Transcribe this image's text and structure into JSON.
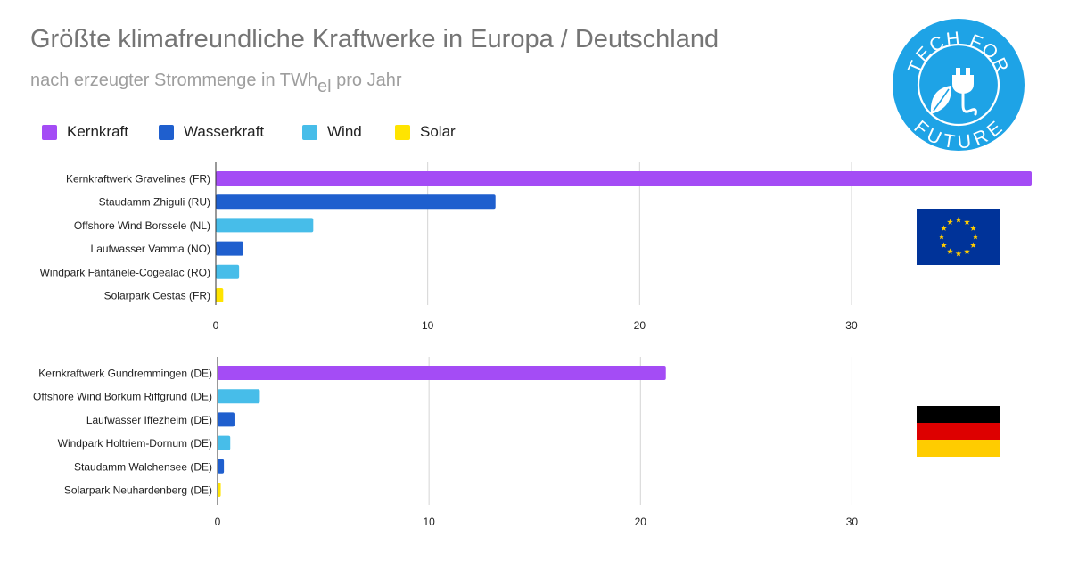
{
  "title": "Größte klimafreundliche Kraftwerke in Europa / Deutschland",
  "subtitle_main": "nach erzeugter Strommenge in TWh",
  "subtitle_sub": "el",
  "subtitle_tail": " pro Jahr",
  "legend": [
    {
      "label": "Kernkraft",
      "color": "#a44cf5"
    },
    {
      "label": "Wasserkraft",
      "color": "#1f5fce"
    },
    {
      "label": "Wind",
      "color": "#47bde9"
    },
    {
      "label": "Solar",
      "color": "#ffe400"
    }
  ],
  "logo": {
    "text_top": "TECH FOR",
    "text_bottom": "FUTURE",
    "color": "#1ea3e6",
    "icon": "plug-leaf-icon"
  },
  "flags": {
    "eu": {
      "icon": "eu-flag-icon",
      "color": "#003399",
      "star_color": "#ffcc00"
    },
    "de": {
      "icon": "germany-flag-icon",
      "colors": [
        "#000000",
        "#dd0000",
        "#ffcc00"
      ]
    }
  },
  "chart_data": [
    {
      "type": "bar",
      "orientation": "horizontal",
      "categories": [
        "Kernkraftwerk Gravelines (FR)",
        "Staudamm Zhiguli (RU)",
        "Offshore Wind Borssele (NL)",
        "Laufwasser Vamma (NO)",
        "Windpark Fântânele-Cogealac (RO)",
        "Solarpark Cestas (FR)"
      ],
      "values": [
        38.5,
        13.2,
        4.6,
        1.3,
        1.1,
        0.35
      ],
      "kinds": [
        "Kernkraft",
        "Wasserkraft",
        "Wind",
        "Wasserkraft",
        "Wind",
        "Solar"
      ],
      "xlim": [
        0,
        38.5
      ],
      "xticks": [
        0,
        10,
        20,
        30
      ],
      "grid": true
    },
    {
      "type": "bar",
      "orientation": "horizontal",
      "categories": [
        "Kernkraftwerk Gundremmingen (DE)",
        "Offshore Wind Borkum Riffgrund (DE)",
        "Laufwasser Iffezheim (DE)",
        "Windpark Holtriem-Dornum (DE)",
        "Staudamm Walchensee (DE)",
        "Solarpark Neuhardenberg (DE)"
      ],
      "values": [
        21.2,
        2.0,
        0.8,
        0.6,
        0.3,
        0.15
      ],
      "kinds": [
        "Kernkraft",
        "Wind",
        "Wasserkraft",
        "Wind",
        "Wasserkraft",
        "Solar"
      ],
      "xlim": [
        0,
        38.5
      ],
      "xticks": [
        0,
        10,
        20,
        30
      ],
      "grid": true
    }
  ]
}
